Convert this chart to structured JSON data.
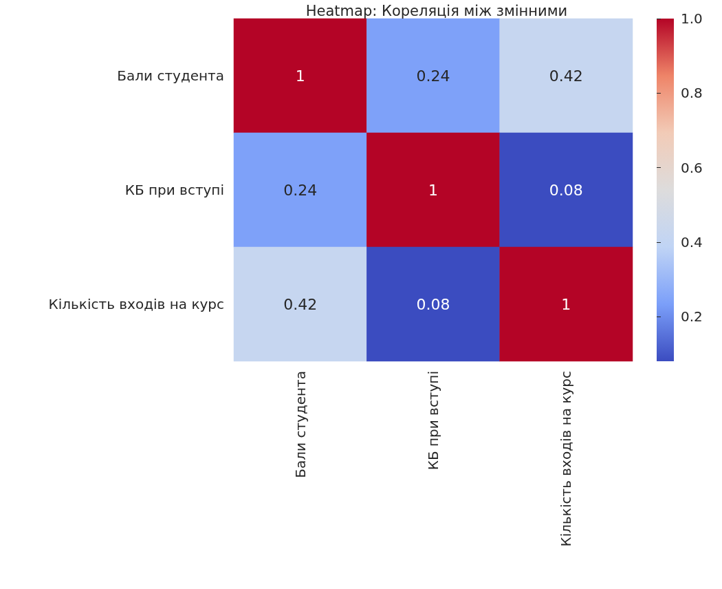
{
  "chart_data": {
    "type": "heatmap",
    "title": "Heatmap: Кореляція між змінними",
    "categories": [
      "Бали студента",
      "КБ при вступі",
      "Кількість входів на курс"
    ],
    "y_categories": [
      "Бали студента",
      "КБ при вступі",
      "Кількість входів на курс"
    ],
    "cells": [
      [
        1,
        0.24,
        0.42
      ],
      [
        0.24,
        1,
        0.08
      ],
      [
        0.42,
        0.08,
        1
      ]
    ],
    "data_labels": true,
    "clim": [
      0.08,
      1
    ],
    "cticks": [
      0.2,
      0.4,
      0.6,
      0.8,
      {
        "value": 1,
        "label": "1.0"
      }
    ],
    "colors": [
      "#3b4cc0",
      "#7b9ff9",
      "#c0d4f5",
      "#dddcdc",
      "#f2cbb7",
      "#ee8468",
      "#b40426"
    ]
  }
}
